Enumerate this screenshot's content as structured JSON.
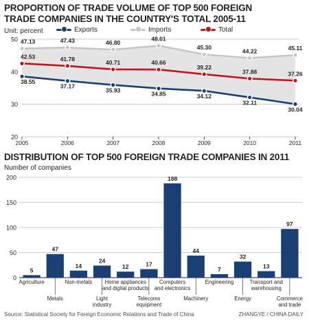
{
  "line_chart": {
    "title_line1": "PROPORTION OF TRADE VOLUME OF TOP 500 FOREIGN",
    "title_line2": "TRADE COMPANIES IN THE COUNTRY'S TOTAL 2005-11",
    "unit_label": "Unit: percent",
    "legend": [
      {
        "label": "Exports",
        "color": "#1c3f73"
      },
      {
        "label": "Imports",
        "color": "#c6c6c6"
      },
      {
        "label": "Total",
        "color": "#c0141e"
      }
    ]
  },
  "bar_chart": {
    "title": "DISTRIBUTION OF TOP 500 FOREIGN TRADE COMPANIES IN 2011",
    "ylabel": "Number of companies"
  },
  "source": "Source: Statistical Society for Foreign Economic Relations and Trade of China",
  "credit": "ZHANGYE / CHINA DAILY",
  "chart_data": [
    {
      "type": "line",
      "title": "PROPORTION OF TRADE VOLUME OF TOP 500 FOREIGN TRADE COMPANIES IN THE COUNTRY'S TOTAL 2005-11",
      "ylabel": "Unit: percent",
      "x": [
        "2005",
        "2006",
        "2007",
        "2008",
        "2009",
        "2010",
        "2011"
      ],
      "ylim": [
        20,
        50
      ],
      "yticks": [
        20,
        30,
        40,
        50
      ],
      "grid": true,
      "legend_position": "top",
      "series": [
        {
          "name": "Exports",
          "color": "#1c3f73",
          "values": [
            38.55,
            37.17,
            35.93,
            34.85,
            34.12,
            32.11,
            30.04
          ]
        },
        {
          "name": "Imports",
          "color": "#c6c6c6",
          "values": [
            47.13,
            47.43,
            46.8,
            48.01,
            45.3,
            44.22,
            45.11
          ]
        },
        {
          "name": "Total",
          "color": "#c0141e",
          "values": [
            42.53,
            41.78,
            40.71,
            40.66,
            39.22,
            37.88,
            37.26
          ]
        }
      ]
    },
    {
      "type": "bar",
      "title": "DISTRIBUTION OF TOP 500 FOREIGN TRADE COMPANIES IN 2011",
      "ylabel": "Number of companies",
      "ylim": [
        0,
        200
      ],
      "yticks": [
        0,
        50,
        100,
        150,
        200
      ],
      "grid": true,
      "color": "#1c3f73",
      "categories": [
        "Agriculture",
        "Metals",
        "Non-metals",
        "Light industry",
        "Home appliances and digital products",
        "Telecoms equipment",
        "Computers and electronics",
        "Machinery",
        "Engineering",
        "Energy",
        "Transport and warehousing",
        "Commerce and trade"
      ],
      "category_lines": [
        [
          "Agriculture"
        ],
        [
          "Metals"
        ],
        [
          "Non-metals"
        ],
        [
          "Light",
          "industry"
        ],
        [
          "Home appliances",
          "and digital products"
        ],
        [
          "Telecoms",
          "equipment"
        ],
        [
          "Computers",
          "and electronics"
        ],
        [
          "Machinery"
        ],
        [
          "Engineering"
        ],
        [
          "Energy"
        ],
        [
          "Transport and",
          "warehousing"
        ],
        [
          "Commerce",
          "and trade"
        ]
      ],
      "values": [
        5,
        47,
        14,
        24,
        12,
        17,
        188,
        44,
        7,
        32,
        13,
        97
      ]
    }
  ]
}
